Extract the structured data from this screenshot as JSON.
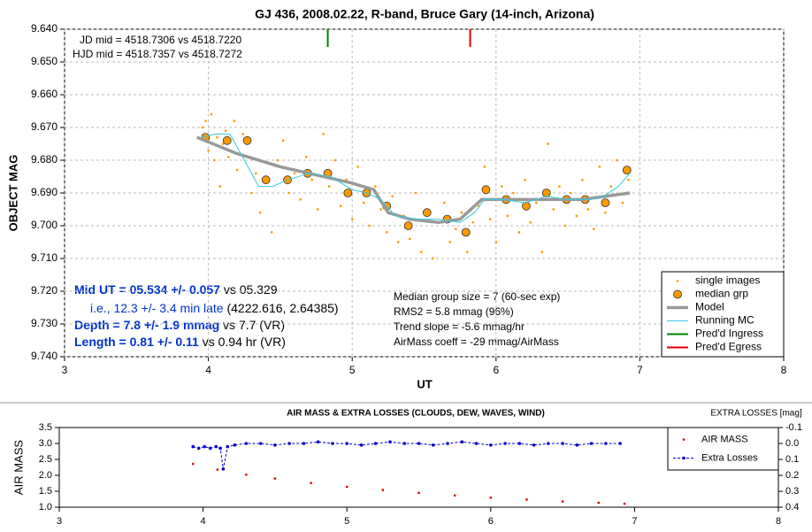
{
  "chart_data": [
    {
      "type": "line",
      "title": "GJ 436, 2008.02.22, R-band, Bruce Gary (14-inch, Arizona)",
      "x_label": "UT",
      "y_label": "OBJECT MAG",
      "xlim": [
        3,
        8
      ],
      "xticks": [
        3,
        4,
        5,
        6,
        7,
        8
      ],
      "ylim": [
        9.64,
        9.74
      ],
      "y_reversed": true,
      "yticks": [
        {
          "value": 9.64,
          "label": "9.640"
        },
        {
          "value": 9.65,
          "label": "9.650"
        },
        {
          "value": 9.66,
          "label": "9.660"
        },
        {
          "value": 9.67,
          "label": "9.670"
        },
        {
          "value": 9.68,
          "label": "9.680"
        },
        {
          "value": 9.69,
          "label": "9.690"
        },
        {
          "value": 9.7,
          "label": "9.700"
        },
        {
          "value": 9.71,
          "label": "9.710"
        },
        {
          "value": 9.72,
          "label": "9.720"
        },
        {
          "value": 9.73,
          "label": "9.730"
        },
        {
          "value": 9.74,
          "label": "9.740"
        }
      ],
      "grid": true,
      "legend": "lower right",
      "series": [
        {
          "name": "single images",
          "color": "#ff9900",
          "kind": "scatter",
          "x": [
            3.96,
            3.98,
            4.0,
            4.02,
            4.04,
            4.06,
            4.08,
            4.1,
            4.12,
            4.14,
            4.18,
            4.2,
            4.24,
            4.27,
            4.3,
            4.33,
            4.36,
            4.4,
            4.44,
            4.48,
            4.52,
            4.56,
            4.6,
            4.64,
            4.68,
            4.72,
            4.76,
            4.8,
            4.84,
            4.88,
            4.92,
            4.96,
            5.0,
            5.04,
            5.08,
            5.12,
            5.16,
            5.2,
            5.24,
            5.28,
            5.32,
            5.36,
            5.4,
            5.44,
            5.48,
            5.52,
            5.56,
            5.6,
            5.64,
            5.68,
            5.72,
            5.76,
            5.8,
            5.84,
            5.88,
            5.92,
            5.96,
            6.0,
            6.04,
            6.08,
            6.12,
            6.16,
            6.2,
            6.24,
            6.28,
            6.32,
            6.36,
            6.4,
            6.44,
            6.48,
            6.52,
            6.56,
            6.6,
            6.64,
            6.68,
            6.72,
            6.76,
            6.8,
            6.84,
            6.88,
            6.92
          ],
          "values": [
            9.67,
            9.668,
            9.677,
            9.666,
            9.68,
            9.673,
            9.688,
            9.675,
            9.671,
            9.679,
            9.668,
            9.683,
            9.672,
            9.679,
            9.69,
            9.684,
            9.696,
            9.686,
            9.702,
            9.68,
            9.674,
            9.69,
            9.684,
            9.692,
            9.679,
            9.686,
            9.695,
            9.672,
            9.688,
            9.68,
            9.694,
            9.686,
            9.698,
            9.682,
            9.693,
            9.7,
            9.688,
            9.695,
            9.702,
            9.691,
            9.705,
            9.697,
            9.704,
            9.69,
            9.708,
            9.696,
            9.71,
            9.699,
            9.693,
            9.705,
            9.701,
            9.696,
            9.708,
            9.699,
            9.694,
            9.682,
            9.698,
            9.705,
            9.688,
            9.697,
            9.69,
            9.702,
            9.686,
            9.699,
            9.693,
            9.708,
            9.675,
            9.695,
            9.688,
            9.7,
            9.69,
            9.697,
            9.686,
            9.695,
            9.701,
            9.682,
            9.696,
            9.688,
            9.68,
            9.693,
            9.686
          ]
        },
        {
          "name": "median grp",
          "color": "#ff9900",
          "kind": "marker",
          "x": [
            3.98,
            4.13,
            4.27,
            4.4,
            4.55,
            4.69,
            4.83,
            4.97,
            5.1,
            5.24,
            5.39,
            5.52,
            5.66,
            5.79,
            5.93,
            6.07,
            6.21,
            6.35,
            6.49,
            6.62,
            6.76,
            6.91
          ],
          "values": [
            9.673,
            9.674,
            9.674,
            9.686,
            9.686,
            9.684,
            9.684,
            9.69,
            9.69,
            9.694,
            9.7,
            9.696,
            9.698,
            9.702,
            9.689,
            9.692,
            9.694,
            9.69,
            9.692,
            9.692,
            9.693,
            9.683
          ]
        },
        {
          "name": "Model",
          "color": "#999999",
          "kind": "line",
          "width": 3.5,
          "x": [
            3.92,
            4.2,
            4.5,
            5.0,
            5.15,
            5.25,
            5.4,
            5.6,
            5.75,
            5.9,
            6.2,
            6.6,
            6.93
          ],
          "values": [
            9.673,
            9.678,
            9.682,
            9.687,
            9.689,
            9.696,
            9.698,
            9.699,
            9.698,
            9.692,
            9.692,
            9.692,
            9.69
          ]
        },
        {
          "name": "Running MC",
          "color": "#33ccdd",
          "kind": "line",
          "width": 1,
          "x": [
            3.95,
            4.05,
            4.15,
            4.25,
            4.35,
            4.45,
            4.55,
            4.7,
            4.85,
            5.0,
            5.1,
            5.2,
            5.3,
            5.45,
            5.6,
            5.75,
            5.85,
            5.92,
            6.05,
            6.2,
            6.35,
            6.5,
            6.65,
            6.75,
            6.85,
            6.93
          ],
          "values": [
            9.673,
            9.672,
            9.672,
            9.68,
            9.688,
            9.688,
            9.686,
            9.684,
            9.685,
            9.689,
            9.69,
            9.692,
            9.697,
            9.698,
            9.698,
            9.699,
            9.696,
            9.692,
            9.692,
            9.693,
            9.691,
            9.692,
            9.692,
            9.691,
            9.688,
            9.684
          ]
        },
        {
          "name": "Pred'd Ingress",
          "color": "#008000",
          "kind": "vline",
          "x": [
            4.83
          ]
        },
        {
          "name": "Pred'd Egress",
          "color": "#dd0000",
          "kind": "vline",
          "x": [
            5.82
          ]
        }
      ],
      "notes_top": [
        "JD mid = 4518.7306 vs 4518.7220",
        "HJD mid = 4518.7357 vs 4518.7272"
      ],
      "notes_left": [
        [
          "Mid UT = 05.534 +/- 0.057",
          " vs 05.329"
        ],
        [
          "i.e., 12.3 +/- 3.4 min late",
          " (4222.616, 2.64385)"
        ],
        [
          "Depth = 7.8 +/- 1.9 mmag",
          " vs 7.7 (VR)"
        ],
        [
          "Length = 0.81 +/- 0.11",
          " vs 0.94 hr (VR)"
        ]
      ],
      "notes_right": [
        "Median group size = 7 (60-sec exp)",
        "RMS2 = 5.8 mmag (96%)",
        "Trend slope = -5.6 mmag/hr",
        "AirMass coeff = -29 mmag/AirMass"
      ]
    },
    {
      "type": "line",
      "title": "AIR MASS & EXTRA LOSSES (CLOUDS, DEW, WAVES, WIND)",
      "y_label": "AIR MASS",
      "y2_label": "EXTRA LOSSES [mag]",
      "xlim": [
        3,
        8
      ],
      "xticks": [
        3,
        4,
        5,
        6,
        7,
        8
      ],
      "ylim": [
        1,
        3.5
      ],
      "yticks": [
        {
          "value": 1,
          "label": "1.0"
        },
        1.5,
        {
          "value": 2,
          "label": "2.0"
        },
        2.5,
        {
          "value": 3,
          "label": "3.0"
        },
        3.5
      ],
      "y2lim": [
        -0.1,
        0.4
      ],
      "y2_reversed": true,
      "y2ticks": [
        -0.1,
        {
          "value": 0,
          "label": "0.0"
        },
        0.1,
        0.2,
        0.3,
        0.4
      ],
      "grid": false,
      "legend": "upper right",
      "series": [
        {
          "name": "AIR MASS",
          "color": "#dd0000",
          "kind": "scatter",
          "x": [
            3.93,
            4.1,
            4.3,
            4.5,
            4.75,
            5.0,
            5.25,
            5.5,
            5.75,
            6.0,
            6.25,
            6.5,
            6.75,
            6.93
          ],
          "values": [
            2.36,
            2.18,
            2.02,
            1.9,
            1.76,
            1.64,
            1.54,
            1.45,
            1.37,
            1.3,
            1.24,
            1.18,
            1.14,
            1.11
          ]
        },
        {
          "name": "Extra Losses",
          "color": "#0000cc",
          "kind": "dashline",
          "axis": "y2",
          "x": [
            3.93,
            3.97,
            4.01,
            4.05,
            4.09,
            4.12,
            4.14,
            4.17,
            4.22,
            4.3,
            4.4,
            4.5,
            4.6,
            4.7,
            4.8,
            4.9,
            5.0,
            5.1,
            5.2,
            5.3,
            5.4,
            5.5,
            5.6,
            5.7,
            5.8,
            5.9,
            6.0,
            6.1,
            6.2,
            6.3,
            6.4,
            6.5,
            6.6,
            6.7,
            6.8,
            6.9
          ],
          "values": [
            0.02,
            0.03,
            0.02,
            0.03,
            0.02,
            0.03,
            0.16,
            0.02,
            0.01,
            0.0,
            0.0,
            0.01,
            0.0,
            0.0,
            -0.01,
            0.0,
            0.0,
            0.01,
            0.0,
            -0.01,
            0.0,
            0.0,
            0.01,
            0.0,
            -0.01,
            0.0,
            0.01,
            0.0,
            0.0,
            0.01,
            0.0,
            0.0,
            0.01,
            0.0,
            0.0,
            0.0
          ]
        }
      ]
    }
  ]
}
